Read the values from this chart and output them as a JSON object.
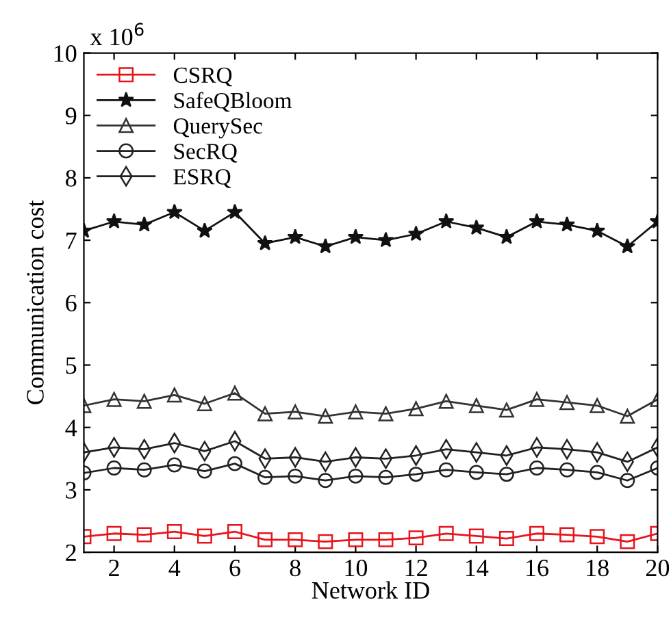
{
  "chart_data": {
    "type": "line",
    "xlabel": "Network ID",
    "ylabel": "Communication cost",
    "annotations": [
      "x 10$^{6}$"
    ],
    "x": [
      1,
      2,
      3,
      4,
      5,
      6,
      7,
      8,
      9,
      10,
      11,
      12,
      13,
      14,
      15,
      16,
      17,
      18,
      19,
      20
    ],
    "series": [
      {
        "name": "CSRQ",
        "color": "#e8141c",
        "marker": "square",
        "values": [
          2.25,
          2.3,
          2.28,
          2.33,
          2.26,
          2.33,
          2.2,
          2.2,
          2.17,
          2.2,
          2.2,
          2.23,
          2.3,
          2.26,
          2.22,
          2.3,
          2.28,
          2.25,
          2.17,
          2.3
        ]
      },
      {
        "name": "SafeQBloom",
        "color": "#111111",
        "marker": "star",
        "values": [
          7.15,
          7.3,
          7.25,
          7.45,
          7.15,
          7.45,
          6.95,
          7.05,
          6.9,
          7.05,
          7.0,
          7.1,
          7.3,
          7.2,
          7.05,
          7.3,
          7.25,
          7.15,
          6.9,
          7.3
        ]
      },
      {
        "name": "QuerySec",
        "color": "#333333",
        "marker": "triangle",
        "values": [
          4.35,
          4.45,
          4.42,
          4.52,
          4.38,
          4.55,
          4.22,
          4.25,
          4.18,
          4.25,
          4.22,
          4.3,
          4.42,
          4.35,
          4.28,
          4.45,
          4.4,
          4.35,
          4.18,
          4.45
        ]
      },
      {
        "name": "SecRQ",
        "color": "#222222",
        "marker": "circle",
        "values": [
          3.27,
          3.35,
          3.32,
          3.4,
          3.3,
          3.42,
          3.2,
          3.22,
          3.15,
          3.22,
          3.2,
          3.25,
          3.32,
          3.28,
          3.25,
          3.35,
          3.32,
          3.28,
          3.15,
          3.35
        ]
      },
      {
        "name": "ESRQ",
        "color": "#222222",
        "marker": "diamond",
        "values": [
          3.6,
          3.68,
          3.65,
          3.75,
          3.62,
          3.78,
          3.5,
          3.52,
          3.45,
          3.52,
          3.5,
          3.55,
          3.65,
          3.6,
          3.55,
          3.68,
          3.65,
          3.6,
          3.45,
          3.68
        ]
      }
    ],
    "xlim": [
      1,
      20
    ],
    "xticks": [
      2,
      4,
      6,
      8,
      10,
      12,
      14,
      16,
      18,
      20
    ],
    "ylim": [
      2,
      10
    ],
    "yticks": [
      2,
      3,
      4,
      5,
      6,
      7,
      8,
      9,
      10
    ],
    "grid": false,
    "legend": "top left",
    "line_style": "solid"
  }
}
